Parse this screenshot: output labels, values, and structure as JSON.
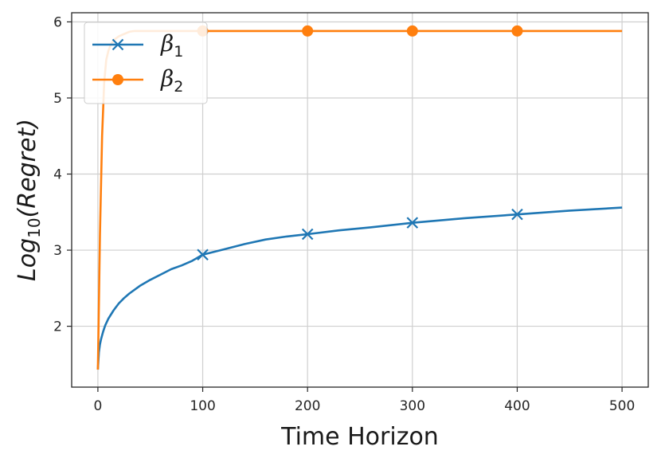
{
  "chart_data": {
    "type": "line",
    "xlabel": "Time Horizon",
    "ylabel": {
      "base": "Log",
      "subscript": "10",
      "rest": "(Regret)"
    },
    "xlim": [
      -25,
      525
    ],
    "ylim": [
      1.2,
      6.12
    ],
    "xticks": [
      0,
      100,
      200,
      300,
      400,
      500
    ],
    "yticks": [
      2,
      3,
      4,
      5,
      6
    ],
    "grid": true,
    "legend_position": "top-left",
    "series": [
      {
        "name": "β",
        "name_subscript": "1",
        "color": "#1f77b4",
        "marker": "x",
        "marker_x": [
          100,
          200,
          300,
          400
        ],
        "x": [
          0,
          1,
          2,
          3,
          5,
          7,
          10,
          15,
          20,
          25,
          30,
          40,
          50,
          60,
          70,
          80,
          90,
          100,
          120,
          140,
          160,
          180,
          200,
          230,
          260,
          300,
          350,
          400,
          450,
          500
        ],
        "y": [
          1.43,
          1.66,
          1.76,
          1.83,
          1.93,
          2.01,
          2.1,
          2.21,
          2.3,
          2.37,
          2.43,
          2.53,
          2.61,
          2.68,
          2.75,
          2.8,
          2.86,
          2.94,
          3.01,
          3.08,
          3.14,
          3.18,
          3.21,
          3.26,
          3.3,
          3.36,
          3.42,
          3.47,
          3.52,
          3.56
        ]
      },
      {
        "name": "β",
        "name_subscript": "2",
        "color": "#ff7f0e",
        "marker": "o",
        "marker_x": [
          100,
          200,
          300,
          400
        ],
        "x": [
          0,
          1,
          2,
          4,
          6,
          8,
          10,
          13,
          16,
          20,
          25,
          30,
          35,
          40,
          50,
          100,
          200,
          300,
          400,
          500
        ],
        "y": [
          1.43,
          2.3,
          3.2,
          4.5,
          5.2,
          5.5,
          5.62,
          5.72,
          5.77,
          5.81,
          5.84,
          5.87,
          5.88,
          5.88,
          5.88,
          5.88,
          5.88,
          5.88,
          5.88,
          5.88
        ]
      }
    ]
  }
}
